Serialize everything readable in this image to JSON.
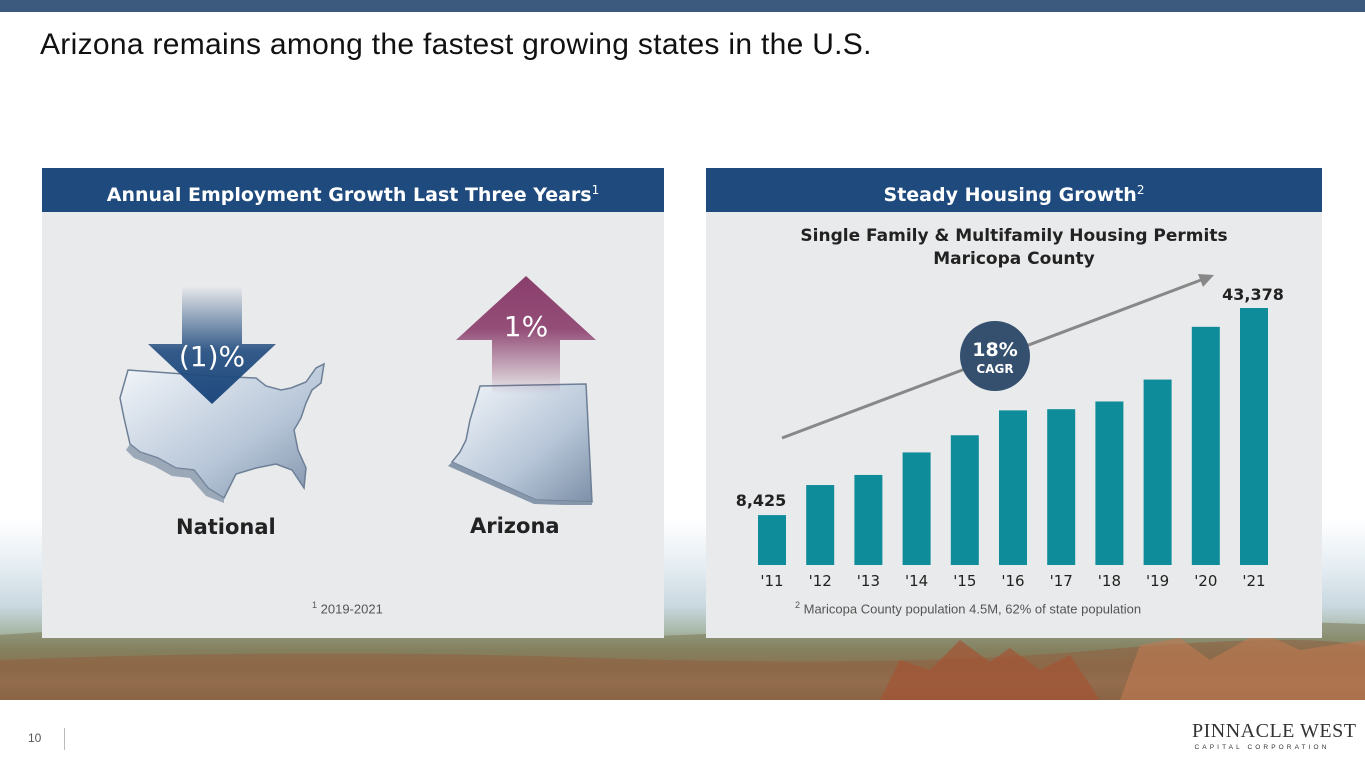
{
  "page": {
    "title": "Arizona remains among the fastest growing states in the U.S.",
    "page_number": "10"
  },
  "left_panel": {
    "header": "Annual Employment Growth Last Three Years",
    "header_note": "1",
    "national": {
      "label": "National",
      "value": "(1)%"
    },
    "arizona": {
      "label": "Arizona",
      "value": "1%"
    },
    "footnote_mark": "1",
    "footnote": " 2019-2021"
  },
  "right_panel": {
    "header": "Steady Housing Growth",
    "header_note": "2",
    "footnote_mark": "2",
    "footnote": " Maricopa County population 4.5M, 62% of state population"
  },
  "chart_data": {
    "type": "bar",
    "title": "Single Family & Multifamily Housing Permits",
    "subtitle": "Maricopa County",
    "categories": [
      "'11",
      "'12",
      "'13",
      "'14",
      "'15",
      "'16",
      "'17",
      "'18",
      "'19",
      "'20",
      "'21"
    ],
    "values": [
      8425,
      13500,
      15200,
      19000,
      21900,
      26100,
      26300,
      27600,
      31300,
      40200,
      43378
    ],
    "data_labels": {
      "first": "8,425",
      "last": "43,378"
    },
    "callout": {
      "value": "18%",
      "label": "CAGR"
    },
    "ylim": [
      0,
      45000
    ],
    "grid": false,
    "colors": {
      "bar": "#0f8c9a",
      "trend": "#888888",
      "callout": "#35506f"
    }
  },
  "logo": {
    "name": "PINNACLE WEST",
    "sub": "CAPITAL CORPORATION"
  },
  "colors": {
    "header": "#1f4a7e",
    "down_arrow": "#1f4a7e",
    "up_arrow": "#8a3d6b",
    "panel": "#e9eaeb"
  }
}
